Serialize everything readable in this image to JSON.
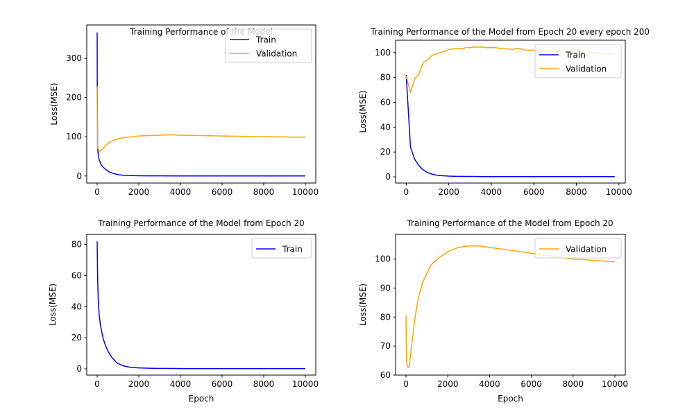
{
  "figure": {
    "background": "#ffffff"
  },
  "colors": {
    "train": "#0000ff",
    "validation": "#ffa500"
  },
  "chart_data": [
    {
      "type": "line",
      "title": "Training Performance of the Model",
      "xlabel": "",
      "ylabel": "Loss(MSE)",
      "xlim": [
        -500,
        10500
      ],
      "ylim": [
        -18,
        385
      ],
      "xticks": [
        0,
        2000,
        4000,
        6000,
        8000,
        10000
      ],
      "yticks": [
        0,
        100,
        200,
        300
      ],
      "grid": false,
      "legend": "top-right",
      "series": [
        {
          "name": "Train",
          "color": "#0000ff",
          "x": [
            0,
            5,
            10,
            20,
            40,
            80,
            120,
            160,
            200,
            300,
            400,
            500,
            600,
            800,
            1000,
            1200,
            1500,
            2000,
            2500,
            3000,
            4000,
            5000,
            6000,
            7000,
            8000,
            9000,
            10000
          ],
          "y": [
            366,
            230,
            150,
            82,
            60,
            45,
            38,
            33,
            28,
            22,
            17,
            13,
            10,
            6,
            3.5,
            2,
            1.2,
            0.6,
            0.4,
            0.3,
            0.2,
            0.2,
            0.2,
            0.2,
            0.2,
            0.2,
            0.2
          ]
        },
        {
          "name": "Validation",
          "color": "#ffa500",
          "x": [
            0,
            5,
            10,
            20,
            40,
            80,
            120,
            160,
            200,
            300,
            400,
            500,
            600,
            800,
            1000,
            1200,
            1500,
            2000,
            2500,
            3000,
            3500,
            4000,
            4500,
            5000,
            5500,
            6000,
            6500,
            7000,
            7500,
            8000,
            8500,
            9000,
            9500,
            10000
          ],
          "y": [
            228,
            150,
            100,
            80,
            70,
            65,
            63,
            64,
            66,
            71,
            77,
            82,
            86,
            91,
            95,
            97,
            99,
            102,
            103,
            104,
            105,
            104,
            103.5,
            103,
            102.5,
            102,
            101.5,
            101,
            100.5,
            100,
            100,
            99.5,
            99,
            99
          ]
        }
      ]
    },
    {
      "type": "line",
      "title": "Training Performance of the Model from Epoch 20 every epoch 200",
      "xlabel": "",
      "ylabel": "Loss(MSE)",
      "xlim": [
        -500,
        10300
      ],
      "ylim": [
        -5,
        110
      ],
      "xticks": [
        0,
        2000,
        4000,
        6000,
        8000,
        10000
      ],
      "yticks": [
        0,
        20,
        40,
        60,
        80,
        100
      ],
      "grid": false,
      "legend": "top-right",
      "series": [
        {
          "name": "Train",
          "color": "#0000ff",
          "x": [
            0,
            200,
            400,
            600,
            800,
            1000,
            1200,
            1400,
            1600,
            1800,
            2000,
            2400,
            2800,
            3200,
            3600,
            4000,
            5000,
            6000,
            7000,
            8000,
            9000,
            9800
          ],
          "y": [
            82,
            24,
            14,
            9,
            5.5,
            3.5,
            2.2,
            1.4,
            1.0,
            0.8,
            0.6,
            0.4,
            0.3,
            0.3,
            0.2,
            0.2,
            0.2,
            0.2,
            0.2,
            0.2,
            0.2,
            0.2
          ],
          "note_values": []
        },
        {
          "name": "Validation",
          "color": "#ffa500",
          "x": [
            0,
            200,
            400,
            600,
            800,
            1000,
            1200,
            1400,
            1600,
            1800,
            2000,
            2200,
            2400,
            2600,
            2800,
            3000,
            3200,
            3400,
            3600,
            3800,
            4000,
            4200,
            4400,
            4600,
            4800,
            5000,
            5200,
            5400,
            5600,
            5800,
            6000,
            6200,
            6400,
            6600,
            6800,
            7000,
            7200,
            7400,
            7600,
            7800,
            8000,
            8200,
            8400,
            8600,
            8800,
            9000,
            9200,
            9400,
            9600,
            9800
          ],
          "y": [
            81,
            68,
            79,
            83,
            92,
            94,
            97.5,
            99,
            100,
            101,
            102.5,
            103,
            103.5,
            103,
            104,
            104,
            104.5,
            104.5,
            104.5,
            104,
            104,
            104,
            103.5,
            103,
            103,
            102.5,
            103.5,
            103,
            102,
            102,
            102,
            101.5,
            102,
            101.5,
            101,
            101,
            101,
            100.5,
            100.5,
            100,
            100,
            100,
            100,
            99.5,
            99.5,
            99.5,
            99.5,
            99,
            99,
            99
          ]
        }
      ]
    },
    {
      "type": "line",
      "title": "Training Performance of the Model from Epoch 20",
      "xlabel": "Epoch",
      "ylabel": "Loss(MSE)",
      "xlim": [
        -500,
        10500
      ],
      "ylim": [
        -4,
        86.5
      ],
      "xticks": [
        0,
        2000,
        4000,
        6000,
        8000,
        10000
      ],
      "yticks": [
        0,
        20,
        40,
        60,
        80
      ],
      "grid": false,
      "legend": "top-right",
      "series": [
        {
          "name": "Train",
          "color": "#0000ff",
          "x": [
            0,
            20,
            50,
            100,
            150,
            200,
            300,
            400,
            500,
            600,
            700,
            800,
            900,
            1000,
            1200,
            1400,
            1600,
            1800,
            2000,
            2500,
            3000,
            4000,
            5000,
            6000,
            7000,
            8000,
            9000,
            10000
          ],
          "y": [
            82,
            60,
            45,
            34,
            29,
            25,
            19,
            15,
            12,
            9.5,
            7.5,
            6,
            4.5,
            3.5,
            2.2,
            1.5,
            1.0,
            0.8,
            0.6,
            0.4,
            0.3,
            0.2,
            0.2,
            0.2,
            0.2,
            0.2,
            0.2,
            0.2
          ]
        }
      ]
    },
    {
      "type": "line",
      "title": "Training Performance of the Model from Epoch 20",
      "xlabel": "Epoch",
      "ylabel": "Loss(MSE)",
      "xlim": [
        -500,
        10500
      ],
      "ylim": [
        60,
        108.5
      ],
      "xticks": [
        0,
        2000,
        4000,
        6000,
        8000,
        10000
      ],
      "yticks": [
        60,
        70,
        80,
        90,
        100
      ],
      "grid": false,
      "legend": "top-right",
      "series": [
        {
          "name": "Validation",
          "color": "#ffa500",
          "x": [
            0,
            10,
            30,
            60,
            100,
            150,
            200,
            300,
            400,
            500,
            600,
            800,
            1000,
            1200,
            1500,
            2000,
            2500,
            3000,
            3500,
            4000,
            4500,
            5000,
            5500,
            6000,
            6500,
            7000,
            7500,
            8000,
            8500,
            9000,
            9500,
            10000
          ],
          "y": [
            80.5,
            71,
            64,
            63.5,
            62.5,
            63,
            66,
            72,
            78,
            83,
            87,
            92,
            95,
            98,
            100,
            102.5,
            104,
            104.5,
            104.5,
            104,
            103.5,
            103,
            102.5,
            102,
            101.5,
            101,
            100.5,
            100,
            99.8,
            99.5,
            99.3,
            99
          ]
        }
      ]
    }
  ]
}
